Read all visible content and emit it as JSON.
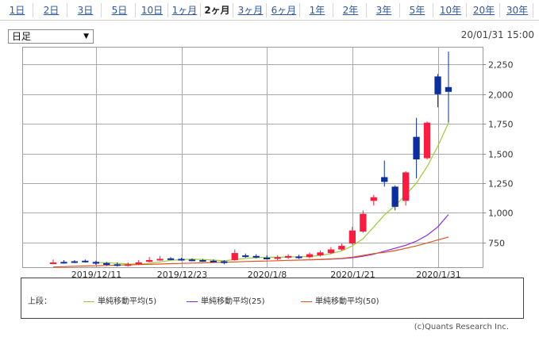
{
  "tabs": [
    "1日",
    "2日",
    "3日",
    "5日",
    "10日",
    "1ヶ月",
    "2ヶ月",
    "3ヶ月",
    "6ヶ月",
    "1年",
    "2年",
    "3年",
    "5年",
    "10年",
    "20年",
    "30年"
  ],
  "active_tab": "2ヶ月",
  "period_select": {
    "value": "日足",
    "arrow": "▼"
  },
  "timestamp": "20/01/31 15:00",
  "legend": {
    "caption": "上段：",
    "items": [
      {
        "label": "単純移動平均(5)",
        "color": "#9acd32"
      },
      {
        "label": "単純移動平均(25)",
        "color": "#8a2be2"
      },
      {
        "label": "単純移動平均(50)",
        "color": "#e2531d"
      }
    ]
  },
  "credit": "(c)Quants Research Inc.",
  "colors": {
    "up": "#ff1a40",
    "down": "#0a2fa0",
    "grid": "#a8a8a8"
  },
  "chart_data": {
    "type": "candlestick",
    "y_ticks": [
      750,
      1000,
      1250,
      1500,
      1750,
      2000,
      2250
    ],
    "x_tick_labels": [
      {
        "label": "2019/12/11",
        "index": 4
      },
      {
        "label": "2019/12/23",
        "index": 12
      },
      {
        "label": "2020/1/8",
        "index": 20
      },
      {
        "label": "2020/1/21",
        "index": 28
      },
      {
        "label": "2020/1/31",
        "index": 36
      }
    ],
    "ylim": [
      540,
      2400
    ],
    "grid": true,
    "candles": [
      {
        "o": 575,
        "c": 580,
        "h": 605,
        "l": 565
      },
      {
        "o": 585,
        "c": 575,
        "h": 600,
        "l": 570
      },
      {
        "o": 590,
        "c": 580,
        "h": 600,
        "l": 575
      },
      {
        "o": 595,
        "c": 585,
        "h": 605,
        "l": 580
      },
      {
        "o": 585,
        "c": 570,
        "h": 595,
        "l": 560
      },
      {
        "o": 575,
        "c": 560,
        "h": 585,
        "l": 550
      },
      {
        "o": 565,
        "c": 555,
        "h": 580,
        "l": 545
      },
      {
        "o": 555,
        "c": 565,
        "h": 580,
        "l": 545
      },
      {
        "o": 565,
        "c": 580,
        "h": 600,
        "l": 560
      },
      {
        "o": 585,
        "c": 600,
        "h": 625,
        "l": 580
      },
      {
        "o": 600,
        "c": 610,
        "h": 635,
        "l": 595
      },
      {
        "o": 615,
        "c": 605,
        "h": 625,
        "l": 600
      },
      {
        "o": 610,
        "c": 600,
        "h": 620,
        "l": 595
      },
      {
        "o": 605,
        "c": 595,
        "h": 615,
        "l": 590
      },
      {
        "o": 600,
        "c": 590,
        "h": 610,
        "l": 585
      },
      {
        "o": 595,
        "c": 585,
        "h": 605,
        "l": 580
      },
      {
        "o": 590,
        "c": 575,
        "h": 600,
        "l": 565
      },
      {
        "o": 600,
        "c": 660,
        "h": 690,
        "l": 595
      },
      {
        "o": 640,
        "c": 630,
        "h": 655,
        "l": 620
      },
      {
        "o": 635,
        "c": 625,
        "h": 650,
        "l": 615
      },
      {
        "o": 620,
        "c": 610,
        "h": 640,
        "l": 605
      },
      {
        "o": 610,
        "c": 625,
        "h": 640,
        "l": 600
      },
      {
        "o": 620,
        "c": 635,
        "h": 650,
        "l": 610
      },
      {
        "o": 630,
        "c": 620,
        "h": 645,
        "l": 610
      },
      {
        "o": 625,
        "c": 650,
        "h": 665,
        "l": 615
      },
      {
        "o": 640,
        "c": 665,
        "h": 680,
        "l": 630
      },
      {
        "o": 660,
        "c": 690,
        "h": 710,
        "l": 650
      },
      {
        "o": 690,
        "c": 720,
        "h": 740,
        "l": 680
      },
      {
        "o": 740,
        "c": 850,
        "h": 880,
        "l": 730
      },
      {
        "o": 840,
        "c": 990,
        "h": 1020,
        "l": 830
      },
      {
        "o": 1100,
        "c": 1130,
        "h": 1150,
        "l": 1060
      },
      {
        "o": 1300,
        "c": 1260,
        "h": 1440,
        "l": 1220
      },
      {
        "o": 1220,
        "c": 1050,
        "h": 1230,
        "l": 1020
      },
      {
        "o": 1100,
        "c": 1340,
        "h": 1350,
        "l": 1060
      },
      {
        "o": 1640,
        "c": 1450,
        "h": 1800,
        "l": 1290
      },
      {
        "o": 1460,
        "c": 1760,
        "h": 1770,
        "l": 1450
      },
      {
        "o": 2150,
        "c": 2000,
        "h": 2170,
        "l": 1890
      },
      {
        "o": 2060,
        "c": 2020,
        "h": 2360,
        "l": 1760
      }
    ],
    "series": [
      {
        "name": "単純移動平均(5)",
        "values": [
          null,
          null,
          null,
          null,
          580,
          578,
          573,
          568,
          566,
          572,
          585,
          598,
          604,
          608,
          605,
          600,
          594,
          604,
          615,
          620,
          625,
          624,
          626,
          628,
          630,
          640,
          655,
          678,
          720,
          780,
          880,
          980,
          1060,
          1150,
          1250,
          1390,
          1560,
          1760
        ]
      },
      {
        "name": "単純移動平均(25)",
        "values": [
          null,
          null,
          null,
          null,
          null,
          null,
          null,
          null,
          null,
          null,
          null,
          null,
          null,
          null,
          null,
          null,
          null,
          null,
          null,
          null,
          null,
          null,
          null,
          null,
          602,
          605,
          608,
          612,
          620,
          632,
          650,
          675,
          700,
          725,
          760,
          810,
          880,
          985
        ]
      },
      {
        "name": "単純移動平均(50)",
        "values": [
          542,
          545,
          548,
          550,
          552,
          555,
          558,
          560,
          562,
          565,
          567,
          570,
          572,
          575,
          577,
          580,
          582,
          585,
          588,
          590,
          592,
          595,
          598,
          600,
          603,
          606,
          610,
          615,
          625,
          640,
          655,
          665,
          680,
          700,
          720,
          745,
          770,
          795
        ]
      }
    ]
  }
}
